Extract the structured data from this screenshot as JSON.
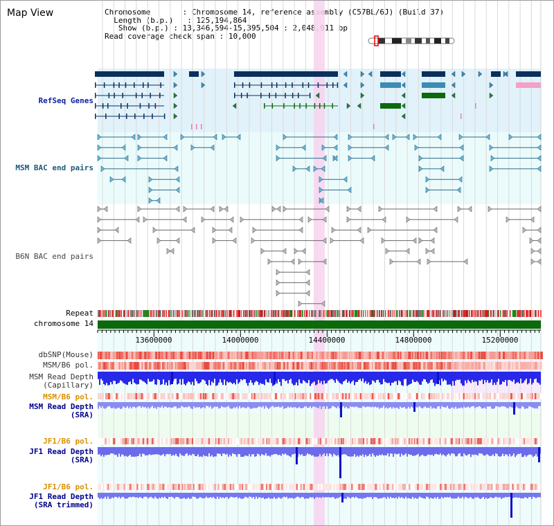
{
  "page": {
    "title": "Map View"
  },
  "info": {
    "chromosome_label": "Chromosome",
    "chromosome_value": "Chromosome 14, reference assembly (C57BL/6J) (Build 37)",
    "length_label": "Length (b.p.)",
    "length_value": "125,194,864",
    "show_label": "Show (b.p.)",
    "show_value": "13,346,594-15,395,504 : 2,048,911 bp",
    "read_cov_label": "Read coverage check span",
    "read_cov_value": "10,000"
  },
  "tracks": {
    "refseq": "RefSeq Genes",
    "msm_bac": "MSM BAC end pairs",
    "b6n_bac": "B6N BAC end pairs",
    "repeat": "Repeat",
    "chromosome": "chromosome 14",
    "dbsnp": "dbSNP(Mouse)",
    "msm_b6_pol_1": "MSM/B6 pol.",
    "msm_depth_cap_1": "MSM Read Depth",
    "msm_depth_cap_2": "(Capillary)",
    "msm_b6_pol_2": "MSM/B6 pol.",
    "msm_depth_sra_1": "MSM Read Depth",
    "msm_depth_sra_2": "(SRA)",
    "jf1_b6_pol_1": "JF1/B6 pol.",
    "jf1_depth_sra_1": "JF1 Read Depth",
    "jf1_depth_sra_2": "(SRA)",
    "jf1_b6_pol_2": "JF1/B6 pol.",
    "jf1_depth_trim_1": "JF1 Read Depth",
    "jf1_depth_trim_2": "(SRA trimmed)"
  },
  "axis": {
    "ticks": [
      "13600000",
      "14000000",
      "14400000",
      "14800000",
      "15200000"
    ]
  },
  "colors": {
    "refseq_dark": "#0a2f5c",
    "refseq_mid": "#3d8bb5",
    "green": "#0b6a0b",
    "pink_highlight": "#f7d4ef",
    "msm_label": "#1b5a7a",
    "blue_label": "#00008b",
    "orange_label": "#d79100"
  }
}
